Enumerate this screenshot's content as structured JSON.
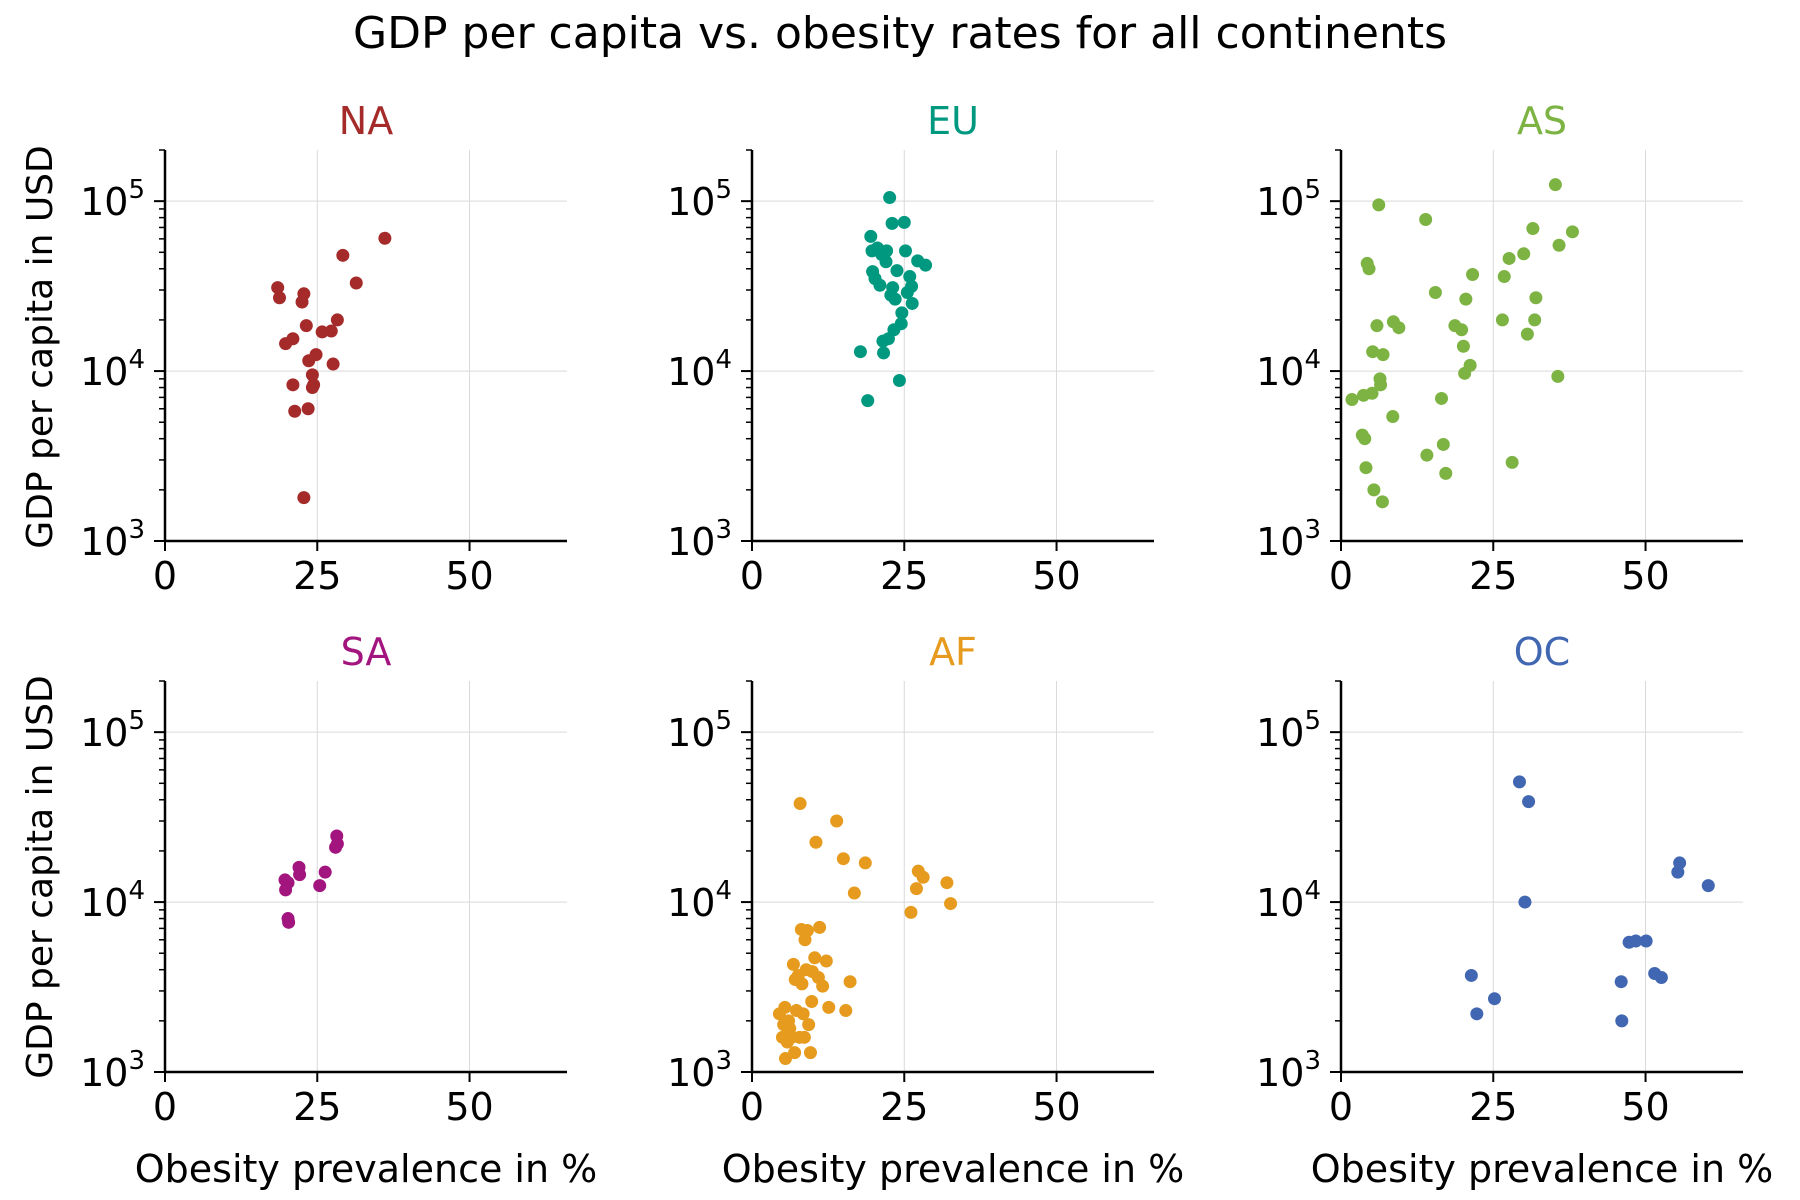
{
  "title": "GDP per capita vs. obesity rates for all continents",
  "ylabel": "GDP per capita in USD",
  "xlabel": "Obesity prevalence in %",
  "chart_data": [
    {
      "type": "scatter",
      "title": "NA",
      "color": "#a52a2a",
      "xlim": [
        0,
        66
      ],
      "ylim": [
        1000,
        200000
      ],
      "yscale": "log",
      "xticks": [
        "0",
        "25",
        "50"
      ],
      "grid": true,
      "points": [
        [
          18.5,
          31000
        ],
        [
          18.8,
          27000
        ],
        [
          19.8,
          14500
        ],
        [
          21,
          15500
        ],
        [
          21,
          8300
        ],
        [
          21.3,
          5800
        ],
        [
          22.5,
          25500
        ],
        [
          22.8,
          28500
        ],
        [
          23.2,
          18500
        ],
        [
          23.5,
          6000
        ],
        [
          23.6,
          11500
        ],
        [
          24.2,
          9500
        ],
        [
          24.2,
          8000
        ],
        [
          24.4,
          8300
        ],
        [
          24.8,
          12500
        ],
        [
          25.8,
          17000
        ],
        [
          27.3,
          17200
        ],
        [
          27.6,
          11000
        ],
        [
          28.3,
          20000
        ],
        [
          29.2,
          48000
        ],
        [
          31.4,
          33000
        ],
        [
          36.1,
          60500
        ],
        [
          22.8,
          1800
        ]
      ]
    },
    {
      "type": "scatter",
      "title": "EU",
      "color": "#009980",
      "xlim": [
        0,
        66
      ],
      "ylim": [
        1000,
        200000
      ],
      "yscale": "log",
      "xticks": [
        "0",
        "25",
        "50"
      ],
      "grid": true,
      "points": [
        [
          17.8,
          13000
        ],
        [
          19,
          6700
        ],
        [
          19.5,
          62000
        ],
        [
          19.7,
          51000
        ],
        [
          19.8,
          38500
        ],
        [
          20.2,
          35000
        ],
        [
          20.6,
          53000
        ],
        [
          21,
          32000
        ],
        [
          21.3,
          48500
        ],
        [
          21.5,
          15000
        ],
        [
          21.6,
          12800
        ],
        [
          22,
          44000
        ],
        [
          22.1,
          51000
        ],
        [
          22.4,
          15500
        ],
        [
          22.6,
          105000
        ],
        [
          22.8,
          28000
        ],
        [
          23,
          74000
        ],
        [
          23.1,
          31000
        ],
        [
          23.3,
          17500
        ],
        [
          23.5,
          26500
        ],
        [
          23.8,
          39000
        ],
        [
          24.2,
          8800
        ],
        [
          24.5,
          19000
        ],
        [
          24.6,
          22000
        ],
        [
          25,
          75000
        ],
        [
          25.2,
          51000
        ],
        [
          25.5,
          29000
        ],
        [
          25.9,
          36000
        ],
        [
          26.2,
          31500
        ],
        [
          26.3,
          25000
        ],
        [
          27.2,
          44500
        ],
        [
          28.5,
          42000
        ]
      ]
    },
    {
      "type": "scatter",
      "title": "AS",
      "color": "#7cb342",
      "xlim": [
        0,
        66
      ],
      "ylim": [
        1000,
        200000
      ],
      "yscale": "log",
      "xticks": [
        "0",
        "25",
        "50"
      ],
      "grid": true,
      "points": [
        [
          1.8,
          6800
        ],
        [
          3.5,
          4200
        ],
        [
          3.7,
          7200
        ],
        [
          3.9,
          4000
        ],
        [
          4.1,
          2700
        ],
        [
          4.3,
          43000
        ],
        [
          4.6,
          40000
        ],
        [
          5.1,
          7400
        ],
        [
          5.2,
          13000
        ],
        [
          5.4,
          2000
        ],
        [
          5.9,
          18500
        ],
        [
          6.2,
          95000
        ],
        [
          6.4,
          9000
        ],
        [
          6.5,
          8300
        ],
        [
          6.8,
          1700
        ],
        [
          6.9,
          12500
        ],
        [
          8.5,
          5400
        ],
        [
          8.6,
          19500
        ],
        [
          9.5,
          18000
        ],
        [
          13.9,
          78000
        ],
        [
          14.1,
          3200
        ],
        [
          15.5,
          29000
        ],
        [
          16.5,
          6900
        ],
        [
          16.8,
          3700
        ],
        [
          17.2,
          2500
        ],
        [
          18.7,
          18500
        ],
        [
          19.8,
          17500
        ],
        [
          20.1,
          14000
        ],
        [
          20.3,
          9700
        ],
        [
          20.5,
          26500
        ],
        [
          21.2,
          10800
        ],
        [
          21.6,
          37000
        ],
        [
          26.5,
          20000
        ],
        [
          26.8,
          36000
        ],
        [
          27.6,
          46000
        ],
        [
          28.1,
          2900
        ],
        [
          30,
          49000
        ],
        [
          30.6,
          16500
        ],
        [
          31.5,
          69000
        ],
        [
          31.8,
          20000
        ],
        [
          32,
          27000
        ],
        [
          35.2,
          125000
        ],
        [
          35.6,
          9300
        ],
        [
          35.8,
          55000
        ],
        [
          38,
          66000
        ]
      ]
    },
    {
      "type": "scatter",
      "title": "SA",
      "color": "#a3157e",
      "xlim": [
        0,
        66
      ],
      "ylim": [
        1000,
        200000
      ],
      "yscale": "log",
      "xticks": [
        "0",
        "25",
        "50"
      ],
      "grid": true,
      "points": [
        [
          19.7,
          13500
        ],
        [
          19.8,
          11800
        ],
        [
          20.2,
          13000
        ],
        [
          20.2,
          8000
        ],
        [
          20.3,
          7600
        ],
        [
          22,
          16000
        ],
        [
          22.1,
          14500
        ],
        [
          25.4,
          12500
        ],
        [
          26.3,
          15000
        ],
        [
          28,
          21000
        ],
        [
          28.2,
          24500
        ],
        [
          28.3,
          22000
        ]
      ]
    },
    {
      "type": "scatter",
      "title": "AF",
      "color": "#e69b1e",
      "xlim": [
        0,
        66
      ],
      "ylim": [
        1000,
        200000
      ],
      "yscale": "log",
      "xticks": [
        "0",
        "25",
        "50"
      ],
      "grid": true,
      "points": [
        [
          4.5,
          2200
        ],
        [
          5,
          1600
        ],
        [
          5.2,
          1900
        ],
        [
          5.4,
          2400
        ],
        [
          5.5,
          1200
        ],
        [
          5.8,
          1500
        ],
        [
          6,
          2000
        ],
        [
          6.2,
          1800
        ],
        [
          6.5,
          1600
        ],
        [
          6.8,
          4300
        ],
        [
          7,
          1300
        ],
        [
          7.1,
          3500
        ],
        [
          7.3,
          2300
        ],
        [
          7.6,
          3700
        ],
        [
          7.8,
          1600
        ],
        [
          7.9,
          38000
        ],
        [
          8.1,
          6900
        ],
        [
          8.2,
          3300
        ],
        [
          8.4,
          2200
        ],
        [
          8.6,
          1600
        ],
        [
          8.7,
          6000
        ],
        [
          8.9,
          4000
        ],
        [
          9.1,
          6800
        ],
        [
          9.3,
          1900
        ],
        [
          9.6,
          1300
        ],
        [
          9.8,
          2600
        ],
        [
          9.9,
          3900
        ],
        [
          10.3,
          4700
        ],
        [
          10.5,
          22500
        ],
        [
          10.9,
          3600
        ],
        [
          11.1,
          7100
        ],
        [
          11.6,
          3200
        ],
        [
          12.2,
          4500
        ],
        [
          12.6,
          2400
        ],
        [
          13.9,
          30000
        ],
        [
          15,
          18000
        ],
        [
          15.4,
          2300
        ],
        [
          16.1,
          3400
        ],
        [
          16.8,
          11300
        ],
        [
          18.6,
          17000
        ],
        [
          26.1,
          8700
        ],
        [
          27,
          12000
        ],
        [
          27.3,
          15200
        ],
        [
          28.1,
          14000
        ],
        [
          32,
          13000
        ],
        [
          32.6,
          9800
        ]
      ]
    },
    {
      "type": "scatter",
      "title": "OC",
      "color": "#4267b2",
      "xlim": [
        0,
        66
      ],
      "ylim": [
        1000,
        200000
      ],
      "yscale": "log",
      "xticks": [
        "0",
        "25",
        "50"
      ],
      "grid": true,
      "points": [
        [
          21.4,
          3700
        ],
        [
          22.3,
          2200
        ],
        [
          25.2,
          2700
        ],
        [
          29.3,
          51000
        ],
        [
          30.2,
          10000
        ],
        [
          30.8,
          39000
        ],
        [
          46,
          3400
        ],
        [
          46.1,
          2000
        ],
        [
          47.3,
          5800
        ],
        [
          48.4,
          5900
        ],
        [
          50.1,
          5900
        ],
        [
          51.5,
          3800
        ],
        [
          52.6,
          3600
        ],
        [
          55.3,
          15000
        ],
        [
          55.6,
          17000
        ],
        [
          60.3,
          12500
        ]
      ]
    }
  ]
}
